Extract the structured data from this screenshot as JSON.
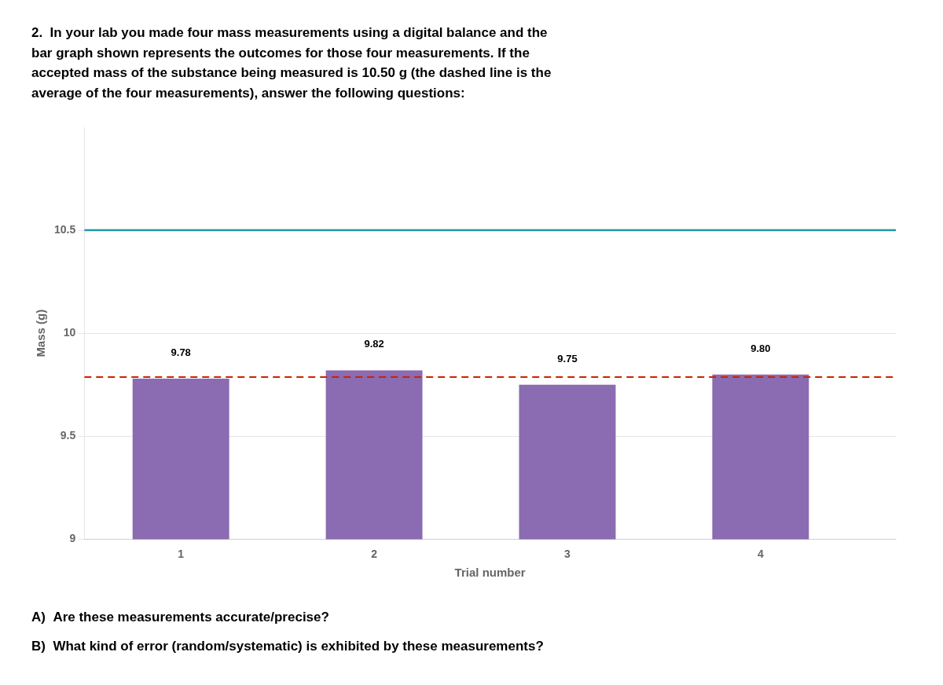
{
  "chart_data": {
    "type": "bar",
    "title": [
      "2.  In your lab you made four mass measurements using a digital balance and the",
      "bar graph shown represents the outcomes for those four measurements. If the",
      "accepted mass of the substance being measured is 10.50 g (the dashed line is the",
      "average of the four measurements), answer the following questions:"
    ],
    "annotations": [
      "A)  Are these measurements accurate/precise?",
      "B)  What kind of error (random/systematic) is exhibited by these measurements?"
    ],
    "x_label": "Trial number",
    "y_label": "Mass (g)",
    "x": [
      1,
      2,
      3,
      4
    ],
    "values": [
      9.78,
      9.82,
      9.75,
      9.8
    ],
    "value_labels": [
      "9.78",
      "9.82",
      "9.75",
      "9.80"
    ],
    "data_labels": true,
    "color": "#8B6BB1",
    "xlim": [
      0.5,
      4.7
    ],
    "xticks": [
      1,
      2,
      3,
      4
    ],
    "ylim": [
      9.0,
      11.0
    ],
    "yticks": [
      9,
      9.5,
      10,
      10.5
    ],
    "grid": true,
    "reference_lines": [
      {
        "y": 10.5,
        "color": "#2196A6",
        "line_style": "solid"
      },
      {
        "y": 9.7875,
        "color": "#cc2200",
        "line_style": "dashed"
      }
    ]
  }
}
